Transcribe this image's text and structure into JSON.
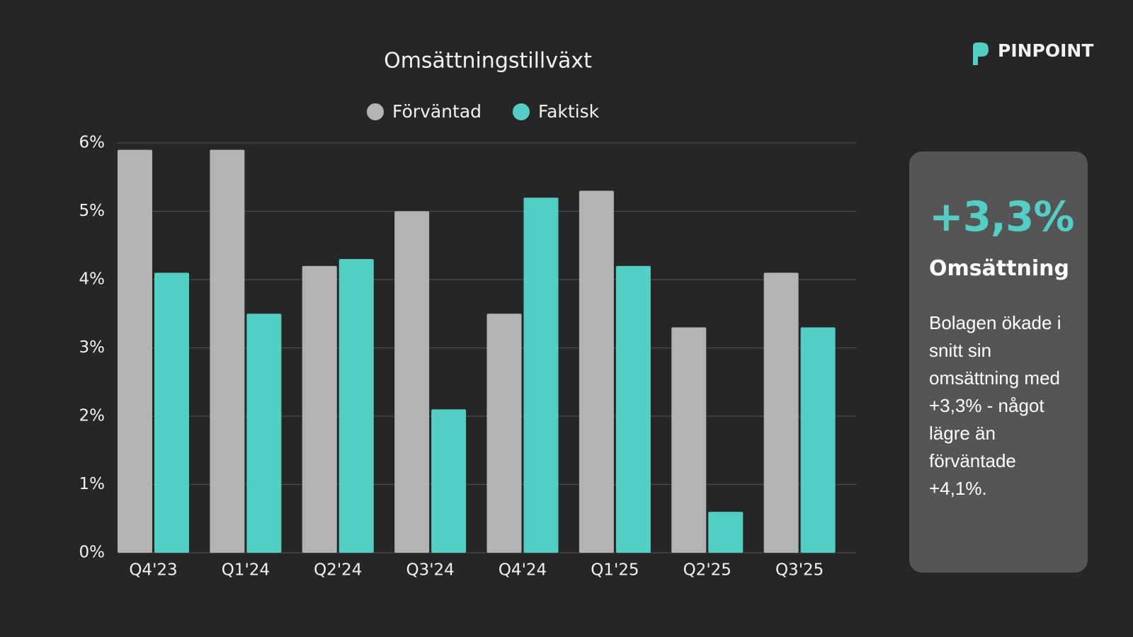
{
  "chart_data": {
    "type": "bar",
    "title": "Omsättningstillväxt",
    "categories": [
      "Q4'23",
      "Q1'24",
      "Q2'24",
      "Q3'24",
      "Q4'24",
      "Q1'25",
      "Q2'25",
      "Q3'25"
    ],
    "series": [
      {
        "name": "Förväntad",
        "color": "#b3b3b3",
        "values": [
          5.9,
          5.9,
          4.2,
          5.0,
          3.5,
          5.3,
          3.3,
          4.1
        ]
      },
      {
        "name": "Faktisk",
        "color": "#52cec4",
        "values": [
          4.1,
          3.5,
          4.3,
          2.1,
          5.2,
          4.2,
          0.6,
          3.3
        ]
      }
    ],
    "ylim": [
      0,
      6
    ],
    "yticks": [
      {
        "value": 0,
        "label": "0%"
      },
      {
        "value": 1,
        "label": "1%"
      },
      {
        "value": 2,
        "label": "2%"
      },
      {
        "value": 3,
        "label": "3%"
      },
      {
        "value": 4,
        "label": "4%"
      },
      {
        "value": 5,
        "label": "5%"
      },
      {
        "value": 6,
        "label": "6%"
      }
    ],
    "grid": true,
    "legend": "top"
  },
  "brand": "PINPOINT",
  "card": {
    "headline": "+3,3%",
    "title": "Omsättning",
    "text": "Bolagen ökade i snitt sin omsättning med +3,3% - något lägre än förväntade +4,1%."
  }
}
